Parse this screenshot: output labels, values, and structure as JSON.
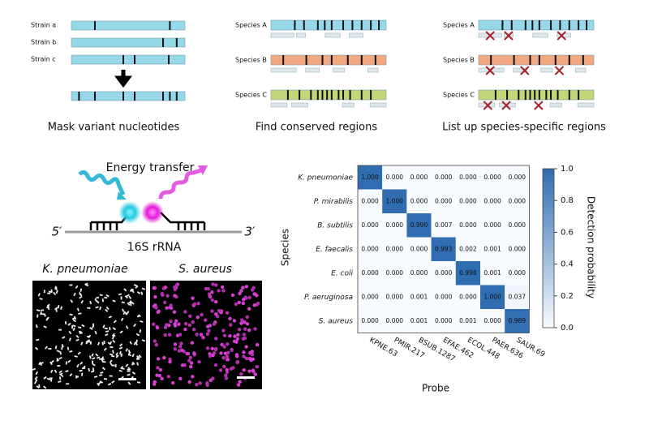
{
  "panels": {
    "mask": {
      "strains": [
        "Strain a",
        "Strain b",
        "Strain c"
      ],
      "caption": "Mask variant nucleotides"
    },
    "conserved": {
      "species": [
        "Species A",
        "Species B",
        "Species C"
      ],
      "caption": "Find conserved regions"
    },
    "specific": {
      "species": [
        "Species A",
        "Species B",
        "Species C"
      ],
      "caption": "List up species-specific regions"
    }
  },
  "fret": {
    "title": "Energy transfer",
    "five_prime": "5′",
    "three_prime": "3′",
    "target": "16S rRNA"
  },
  "images": [
    "K. pneumoniae",
    "S. aureus"
  ],
  "chart_data": {
    "type": "heatmap",
    "categories": [
      "KPNE.63",
      "PMIR.217",
      "BSUB.1287",
      "EFAE.462",
      "ECOL.448",
      "PAER.636",
      "SAUR.69"
    ],
    "series": [
      {
        "name": "K. pneumoniae",
        "values": [
          1,
          0,
          0,
          0,
          0,
          0,
          0
        ],
        "value_labels": [
          "1.000",
          "0.000",
          "0.000",
          "0.000",
          "0.000",
          "0.000",
          "0.000"
        ]
      },
      {
        "name": "P. mirabilis",
        "values": [
          0,
          1,
          0,
          0,
          0,
          0,
          0
        ],
        "value_labels": [
          "0.000",
          "1.000",
          "0.000",
          "0.000",
          "0.000",
          "0.000",
          "0.000"
        ]
      },
      {
        "name": "B. subtilis",
        "values": [
          0,
          0,
          0.99,
          0.007,
          0,
          0,
          0
        ],
        "value_labels": [
          "0.000",
          "0.000",
          "0.990",
          "0.007",
          "0.000",
          "0.000",
          "0.000"
        ]
      },
      {
        "name": "E. faecalis",
        "values": [
          0,
          0,
          0,
          0.993,
          0.002,
          0.001,
          0
        ],
        "value_labels": [
          "0.000",
          "0.000",
          "0.000",
          "0.993",
          "0.002",
          "0.001",
          "0.000"
        ]
      },
      {
        "name": "E. coli",
        "values": [
          0,
          0,
          0,
          0,
          0.998,
          0.001,
          0
        ],
        "value_labels": [
          "0.000",
          "0.000",
          "0.000",
          "0.000",
          "0.998",
          "0.001",
          "0.000"
        ]
      },
      {
        "name": "P. aeruginosa",
        "values": [
          0,
          0,
          0.001,
          0,
          0,
          1,
          0.037
        ],
        "value_labels": [
          "0.000",
          "0.000",
          "0.001",
          "0.000",
          "0.000",
          "1.000",
          "0.037"
        ]
      },
      {
        "name": "S. aureus",
        "values": [
          0,
          0,
          0.001,
          0,
          0.001,
          0,
          0.989
        ],
        "value_labels": [
          "0.000",
          "0.000",
          "0.001",
          "0.000",
          "0.001",
          "0.000",
          "0.989"
        ]
      }
    ],
    "xlabel": "Probe",
    "ylabel": "Species",
    "zlim": [
      0,
      1
    ],
    "zticks": [
      {
        "value": 0,
        "label": "0.0"
      },
      0.2,
      0.4,
      0.6,
      0.8,
      {
        "value": 1,
        "label": "1.0"
      }
    ],
    "zlabel": "Detection probability",
    "colors": [
      "#f7fbff",
      "#2f6db0"
    ]
  }
}
